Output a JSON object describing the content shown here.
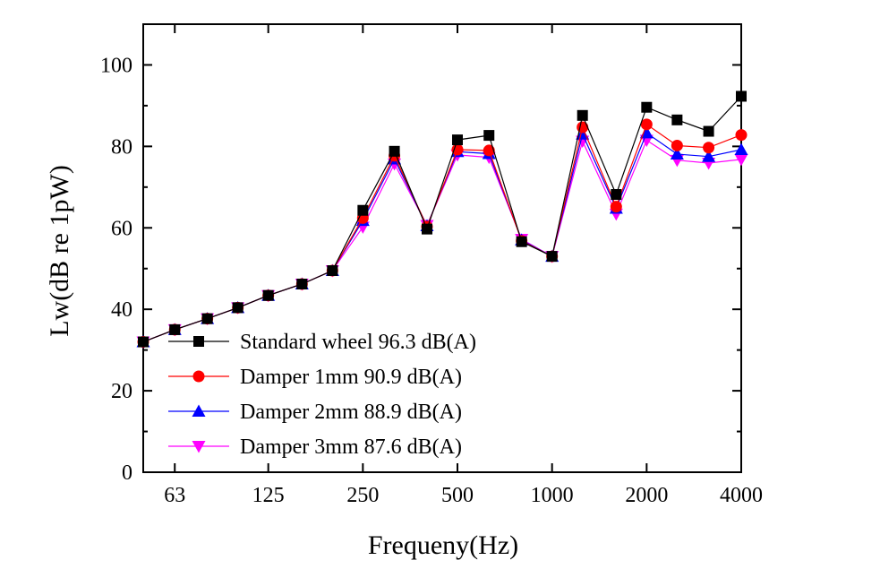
{
  "chart_data": {
    "type": "line",
    "xlabel": "Frequeny(Hz)",
    "ylabel": "Lw(dB re 1pW)",
    "xscale": "log",
    "xlim": [
      50,
      4000
    ],
    "ylim": [
      0,
      110
    ],
    "x_ticks": [
      63,
      125,
      250,
      500,
      1000,
      2000,
      4000
    ],
    "x_tick_labels": [
      "63",
      "125",
      "250",
      "500",
      "1000",
      "2000",
      "4000"
    ],
    "y_ticks": [
      0,
      20,
      40,
      60,
      80,
      100
    ],
    "y_tick_labels": [
      "0",
      "20",
      "40",
      "60",
      "80",
      "100"
    ],
    "legend_position": "bottom-left",
    "grid": false,
    "x": [
      50,
      63,
      80,
      100,
      125,
      160,
      200,
      250,
      315,
      400,
      500,
      630,
      800,
      1000,
      1250,
      1600,
      2000,
      2500,
      3150,
      4000
    ],
    "series": [
      {
        "name": "Standard wheel 96.3 dB(A)",
        "color": "#000000",
        "marker": "square",
        "values": [
          32.0,
          35.0,
          37.7,
          40.4,
          43.4,
          46.2,
          49.5,
          64.3,
          78.8,
          59.7,
          81.6,
          82.7,
          56.6,
          53.0,
          87.6,
          68.2,
          89.6,
          86.5,
          83.7,
          92.3
        ]
      },
      {
        "name": "Damper 1mm 90.9 dB(A)",
        "color": "#ff0000",
        "marker": "circle",
        "values": [
          32.0,
          35.0,
          37.7,
          40.4,
          43.4,
          46.2,
          49.5,
          62.4,
          77.7,
          60.3,
          79.2,
          79.0,
          56.8,
          53.0,
          84.7,
          65.2,
          85.4,
          80.2,
          79.7,
          82.8
        ]
      },
      {
        "name": "Damper 2mm 88.9 dB(A)",
        "color": "#0000ff",
        "marker": "triangle-up",
        "values": [
          32.0,
          35.0,
          37.7,
          40.4,
          43.4,
          46.2,
          49.5,
          61.8,
          76.9,
          60.5,
          78.7,
          78.2,
          57.0,
          53.0,
          83.0,
          64.8,
          83.3,
          78.1,
          77.5,
          79.2
        ]
      },
      {
        "name": "Damper 3mm 87.6 dB(A)",
        "color": "#ff00ff",
        "marker": "triangle-down",
        "values": [
          32.0,
          35.0,
          37.7,
          40.4,
          43.4,
          46.2,
          49.5,
          60.2,
          75.7,
          60.6,
          77.9,
          77.3,
          57.2,
          53.0,
          81.3,
          63.4,
          81.5,
          76.6,
          75.9,
          76.8
        ]
      }
    ]
  }
}
